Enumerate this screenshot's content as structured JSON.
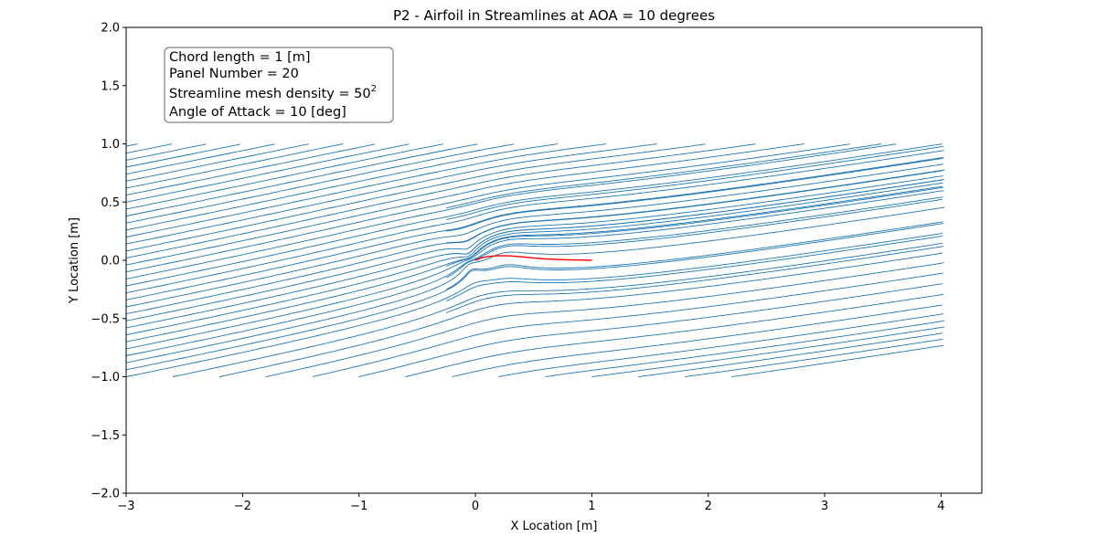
{
  "chart_data": {
    "type": "line",
    "title": "P2 - Airfoil in Streamlines at AOA = 10 degrees",
    "xlabel": "X Location [m]",
    "ylabel": "Y Location [m]",
    "xlim": [
      -3,
      4.35
    ],
    "ylim": [
      -2,
      2
    ],
    "xticks": [
      -3,
      -2,
      -1,
      0,
      1,
      2,
      3,
      4
    ],
    "xtick_labels": [
      "−3",
      "−2",
      "−1",
      "0",
      "1",
      "2",
      "3",
      "4"
    ],
    "yticks": [
      -2,
      -1.5,
      -1,
      -0.5,
      0,
      0.5,
      1,
      1.5,
      2
    ],
    "ytick_labels": [
      "−2.0",
      "−1.5",
      "−1.0",
      "−0.5",
      "0.0",
      "0.5",
      "1.0",
      "1.5",
      "2.0"
    ],
    "grid": false,
    "annotation": {
      "lines": [
        "Chord length = 1 [m]",
        "Panel Number = 20",
        "Streamline mesh density = 50",
        "Angle of Attack = 10 [deg]"
      ],
      "superscript": "2",
      "placement": "top-left"
    },
    "streamlines": {
      "color": "#1f77b4",
      "freestream_angle_deg": 10,
      "domain_x": [
        -3,
        4
      ],
      "domain_y": [
        -1,
        1
      ]
    },
    "airfoil": {
      "color": "#ff0000",
      "x": [
        0.0,
        0.05,
        0.1,
        0.2,
        0.3,
        0.4,
        0.5,
        0.6,
        0.7,
        0.8,
        0.9,
        1.0
      ],
      "y": [
        0.0,
        0.02,
        0.032,
        0.04,
        0.038,
        0.03,
        0.02,
        0.012,
        0.007,
        0.004,
        0.002,
        0.0
      ]
    }
  }
}
